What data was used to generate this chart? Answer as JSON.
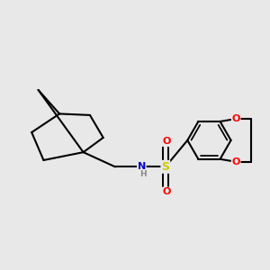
{
  "bg_color": "#e8e8e8",
  "bond_color": "#000000",
  "bond_width": 1.5,
  "atom_colors": {
    "O": "#ff0000",
    "N": "#0000cc",
    "S": "#cccc00",
    "H": "#888888"
  },
  "font_size_atom": 8,
  "font_size_H": 6.5,
  "figsize": [
    3.0,
    3.0
  ],
  "dpi": 100,
  "xlim": [
    0,
    10
  ],
  "ylim": [
    0,
    10
  ]
}
